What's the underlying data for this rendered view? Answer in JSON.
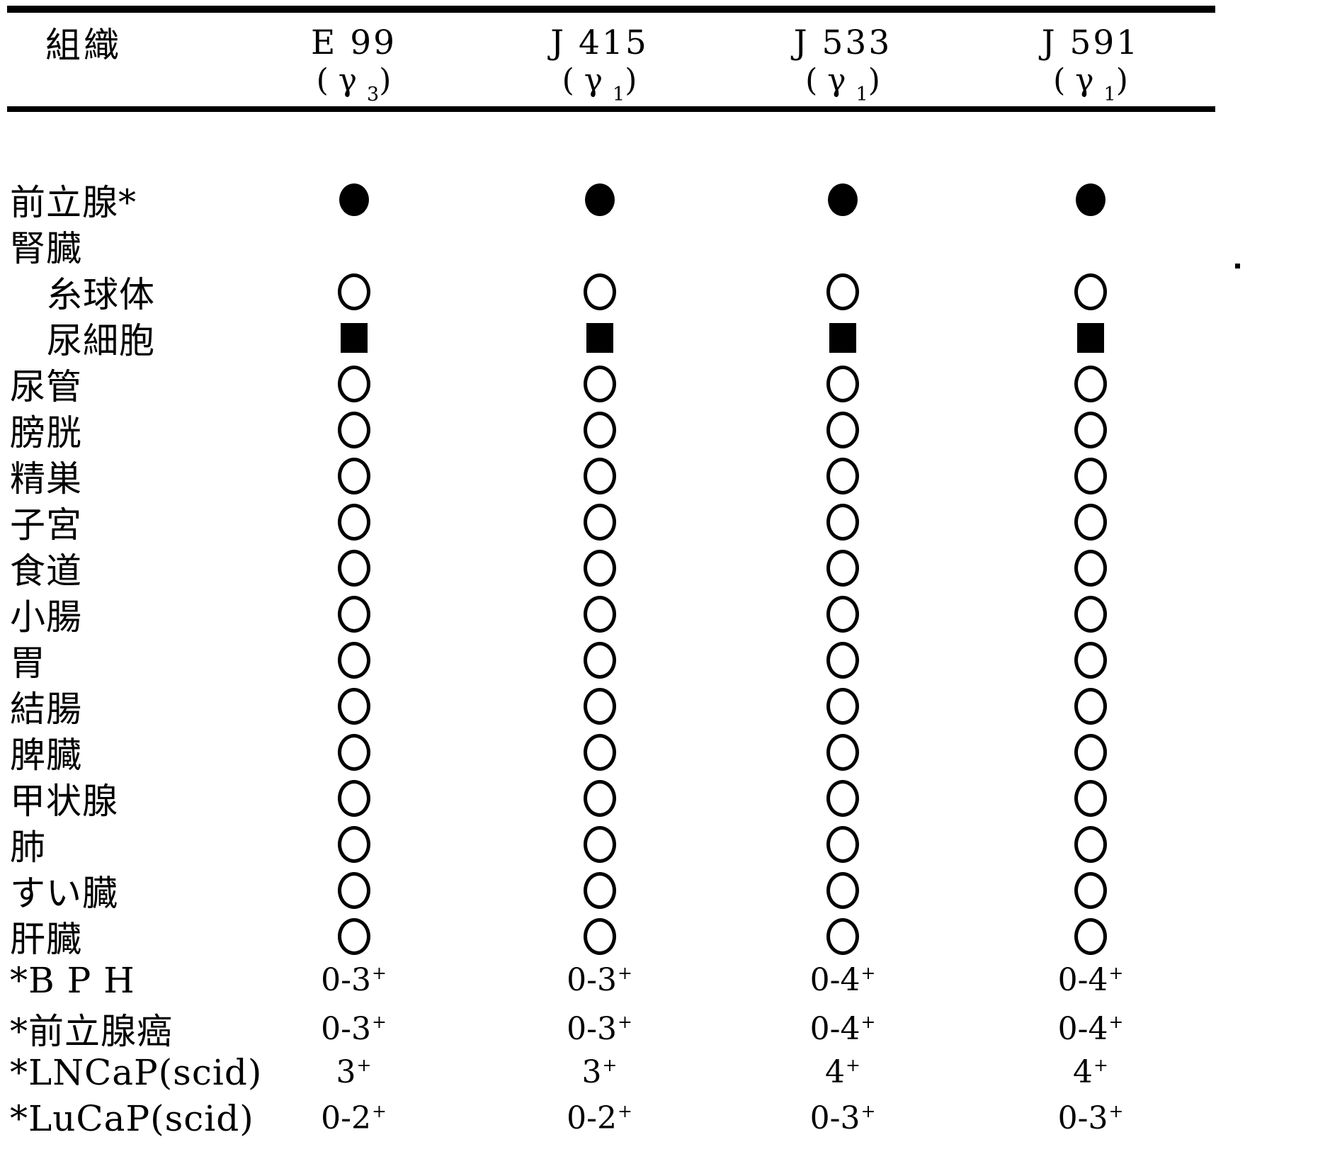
{
  "page": {
    "background": "#ffffff",
    "ink_color": "#000000"
  },
  "table": {
    "header": {
      "tissue_label": "組織",
      "columns": [
        {
          "name": "E 99",
          "iso_prefix": "( γ ",
          "iso_sub": "3",
          "iso_suffix": ")"
        },
        {
          "name": "J 415",
          "iso_prefix": "( γ ",
          "iso_sub": "1",
          "iso_suffix": ")"
        },
        {
          "name": "J 533",
          "iso_prefix": "( γ ",
          "iso_sub": "1",
          "iso_suffix": ")"
        },
        {
          "name": "J 591",
          "iso_prefix": "( γ ",
          "iso_sub": "1",
          "iso_suffix": ")"
        }
      ]
    },
    "symbol_names": {
      "filled-circle": "●",
      "open-circle": "○",
      "filled-square": "■"
    },
    "rows": [
      {
        "label": "前立腺*",
        "indent": false,
        "cells": [
          "filled-circle",
          "filled-circle",
          "filled-circle",
          "filled-circle"
        ]
      },
      {
        "label": "腎臓",
        "indent": false,
        "cells": [
          "",
          "",
          "",
          ""
        ]
      },
      {
        "label": "糸球体",
        "indent": true,
        "cells": [
          "open-circle",
          "open-circle",
          "open-circle",
          "open-circle"
        ]
      },
      {
        "label": "尿細胞",
        "indent": true,
        "cells": [
          "filled-square",
          "filled-square",
          "filled-square",
          "filled-square"
        ]
      },
      {
        "label": "尿管",
        "indent": false,
        "cells": [
          "open-circle",
          "open-circle",
          "open-circle",
          "open-circle"
        ]
      },
      {
        "label": "膀胱",
        "indent": false,
        "cells": [
          "open-circle",
          "open-circle",
          "open-circle",
          "open-circle"
        ]
      },
      {
        "label": "精巣",
        "indent": false,
        "cells": [
          "open-circle",
          "open-circle",
          "open-circle",
          "open-circle"
        ]
      },
      {
        "label": "子宮",
        "indent": false,
        "cells": [
          "open-circle",
          "open-circle",
          "open-circle",
          "open-circle"
        ]
      },
      {
        "label": "食道",
        "indent": false,
        "cells": [
          "open-circle",
          "open-circle",
          "open-circle",
          "open-circle"
        ]
      },
      {
        "label": "小腸",
        "indent": false,
        "cells": [
          "open-circle",
          "open-circle",
          "open-circle",
          "open-circle"
        ]
      },
      {
        "label": "胃",
        "indent": false,
        "cells": [
          "open-circle",
          "open-circle",
          "open-circle",
          "open-circle"
        ]
      },
      {
        "label": "結腸",
        "indent": false,
        "cells": [
          "open-circle",
          "open-circle",
          "open-circle",
          "open-circle"
        ]
      },
      {
        "label": "脾臓",
        "indent": false,
        "cells": [
          "open-circle",
          "open-circle",
          "open-circle",
          "open-circle"
        ]
      },
      {
        "label": "甲状腺",
        "indent": false,
        "cells": [
          "open-circle",
          "open-circle",
          "open-circle",
          "open-circle"
        ]
      },
      {
        "label": "肺",
        "indent": false,
        "cells": [
          "open-circle",
          "open-circle",
          "open-circle",
          "open-circle"
        ]
      },
      {
        "label": "すい臓",
        "indent": false,
        "cells": [
          "open-circle",
          "open-circle",
          "open-circle",
          "open-circle"
        ]
      },
      {
        "label": "肝臓",
        "indent": false,
        "cells": [
          "open-circle",
          "open-circle",
          "open-circle",
          "open-circle"
        ]
      },
      {
        "label": "*B P H",
        "indent": false,
        "cells": [
          "0-3+",
          "0-3+",
          "0-4+",
          "0-4+"
        ]
      },
      {
        "label": "*前立腺癌",
        "indent": false,
        "cells": [
          "0-3+",
          "0-3+",
          "0-4+",
          "0-4+"
        ]
      },
      {
        "label": "*LNCaP(scid)",
        "indent": false,
        "cells": [
          "3+",
          "3+",
          "4+",
          "4+"
        ]
      },
      {
        "label": "*LuCaP(scid)",
        "indent": false,
        "cells": [
          "0-2+",
          "0-2+",
          "0-3+",
          "0-3+"
        ]
      }
    ]
  },
  "scan_artifacts": {
    "ink_dot": "."
  }
}
